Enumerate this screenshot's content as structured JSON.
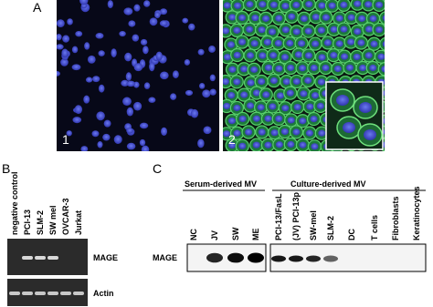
{
  "panel_a": {
    "label": "A",
    "image_labels": [
      "1",
      "2"
    ]
  },
  "panel_b": {
    "label": "B",
    "lanes": [
      "negative control",
      "PCI-13",
      "SLM-2",
      "SW mel",
      "OVCAR-3",
      "Jurkat"
    ],
    "rows": [
      "MAGE",
      "Actin"
    ]
  },
  "panel_c": {
    "label": "C",
    "groups": [
      "Serum-derived MV",
      "Culture-derived MV"
    ],
    "serum_lanes": [
      "NC",
      "JV",
      "SW",
      "ME"
    ],
    "culture_lanes": [
      "PCI-13/FasL",
      "(JV) PCI-13p",
      "SW-mel",
      "SLM-2",
      "DC",
      "T cells",
      "Fibroblasts",
      "Keratinocytes"
    ],
    "row": "MAGE"
  }
}
